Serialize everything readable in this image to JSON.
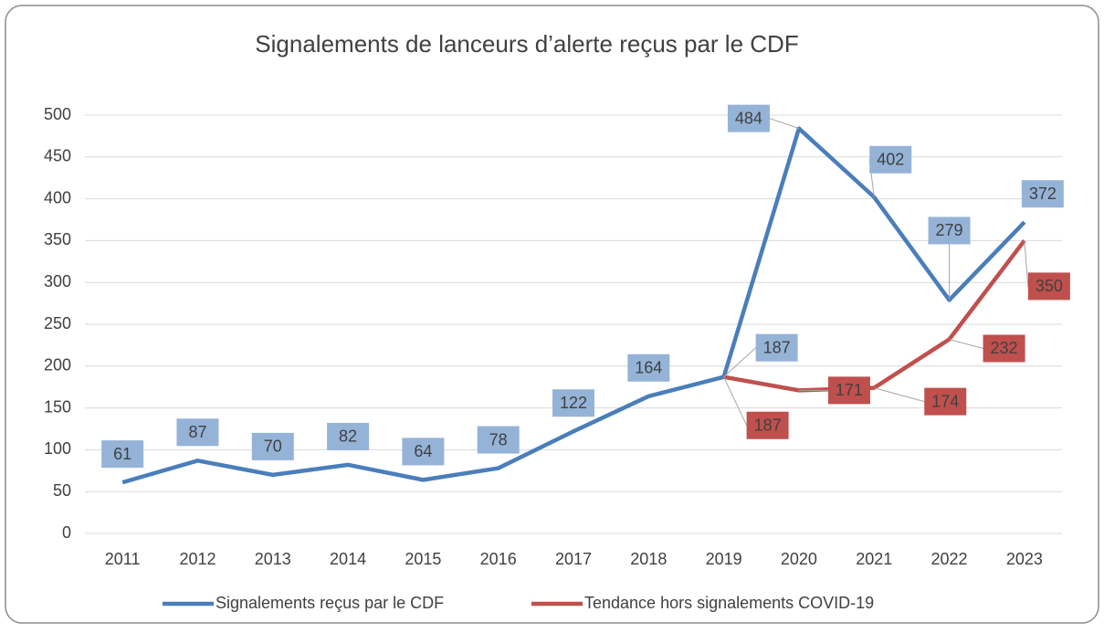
{
  "chart_data": {
    "type": "line",
    "title": "Signalements de lanceurs d’alerte reçus par le CDF",
    "categories": [
      "2011",
      "2012",
      "2013",
      "2014",
      "2015",
      "2016",
      "2017",
      "2018",
      "2019",
      "2020",
      "2021",
      "2022",
      "2023"
    ],
    "series": [
      {
        "name": "Signalements reçus par le CDF",
        "color": "#4a7ebb",
        "values": [
          61,
          87,
          70,
          82,
          64,
          78,
          122,
          164,
          187,
          484,
          402,
          279,
          372
        ]
      },
      {
        "name": "Tendance hors signalements COVID-19",
        "color": "#c0504d",
        "values": [
          null,
          null,
          null,
          null,
          null,
          null,
          null,
          null,
          187,
          171,
          174,
          232,
          350
        ]
      }
    ],
    "ylim": [
      0,
      500
    ],
    "yticks": [
      0,
      50,
      100,
      150,
      200,
      250,
      300,
      350,
      400,
      450,
      500
    ],
    "grid": true,
    "legend": "bottom"
  }
}
